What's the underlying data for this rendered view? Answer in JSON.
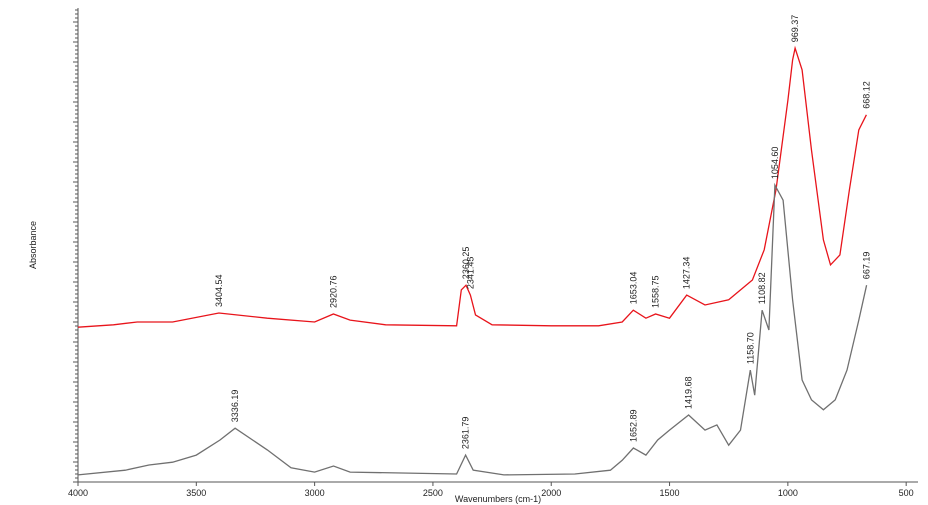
{
  "chart_data": {
    "type": "line",
    "y_label": "Absorbance",
    "x_label": "Wavenumbers (cm-1)",
    "xlim": [
      4000,
      450
    ],
    "ylim": [
      0,
      100
    ],
    "xticks": [
      4000,
      3500,
      3000,
      2500,
      2000,
      1500,
      1000,
      500
    ],
    "series": [
      {
        "color": "#e8141b",
        "x": [
          4000,
          3850,
          3750,
          3600,
          3404.54,
          3200,
          3000,
          2920.76,
          2850,
          2700,
          2400,
          2380,
          2360.25,
          2341.45,
          2320,
          2250,
          2000,
          1800,
          1700,
          1653.04,
          1600,
          1558.75,
          1500,
          1427.34,
          1350,
          1250,
          1150,
          1100,
          1050,
          1000,
          980,
          969.37,
          940,
          900,
          850,
          820,
          780,
          740,
          700,
          668.12
        ],
        "values": [
          32.8,
          33.3,
          33.9,
          33.9,
          35.8,
          34.7,
          33.9,
          35.6,
          34.3,
          33.3,
          33.1,
          40.7,
          41.7,
          39.6,
          35.4,
          33.3,
          33.1,
          33.1,
          33.9,
          36.4,
          34.7,
          35.6,
          34.7,
          39.6,
          37.5,
          38.6,
          42.8,
          49.2,
          61.9,
          80.9,
          89.4,
          91.9,
          87.3,
          70.3,
          51.3,
          46.0,
          48.1,
          61.9,
          74.6,
          77.8
        ],
        "peaks": [
          3404.54,
          2920.76,
          2360.25,
          2341.45,
          1653.04,
          1558.75,
          1427.34,
          969.37,
          668.12
        ]
      },
      {
        "color": "#707070",
        "x": [
          4000,
          3800,
          3700,
          3600,
          3500,
          3400,
          3336.19,
          3200,
          3100,
          3000,
          2920,
          2850,
          2400,
          2361.79,
          2330,
          2200,
          1900,
          1750,
          1700,
          1652.89,
          1600,
          1550,
          1500,
          1419.68,
          1350,
          1300,
          1250,
          1200,
          1158.7,
          1140,
          1108.82,
          1080,
          1054.6,
          1020,
          980,
          940,
          900,
          850,
          800,
          750,
          700,
          667.19
        ],
        "values": [
          1.5,
          2.5,
          3.6,
          4.2,
          5.7,
          8.9,
          11.4,
          6.8,
          3.0,
          2.1,
          3.4,
          2.1,
          1.7,
          5.7,
          2.5,
          1.5,
          1.7,
          2.5,
          4.6,
          7.2,
          5.7,
          8.9,
          11.0,
          14.2,
          11.0,
          12.1,
          7.8,
          11.0,
          23.7,
          18.4,
          36.4,
          32.2,
          62.9,
          59.7,
          38.6,
          21.6,
          17.4,
          15.3,
          17.4,
          23.7,
          34.3,
          41.7
        ],
        "peaks": [
          3336.19,
          2361.79,
          1652.89,
          1419.68,
          {
            "value": 1158.7,
            "label": "1158.70"
          },
          1108.82,
          {
            "value": 1054.6,
            "label": "1054.60"
          },
          667.19
        ]
      }
    ]
  }
}
